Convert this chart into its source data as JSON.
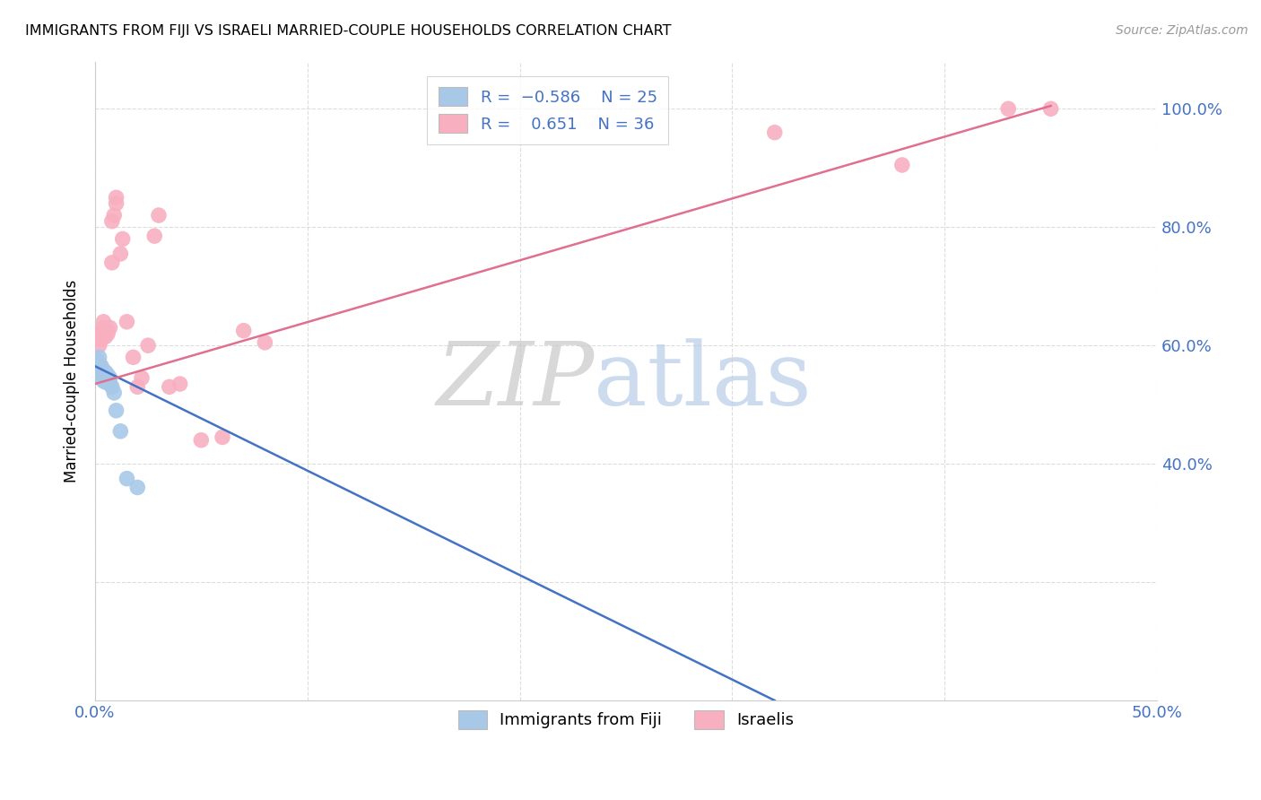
{
  "title": "IMMIGRANTS FROM FIJI VS ISRAELI MARRIED-COUPLE HOUSEHOLDS CORRELATION CHART",
  "source": "Source: ZipAtlas.com",
  "ylabel_label": "Married-couple Households",
  "x_min": 0.0,
  "x_max": 0.5,
  "y_min": 0.0,
  "y_max": 1.08,
  "fiji_R": -0.586,
  "fiji_N": 25,
  "israeli_R": 0.651,
  "israeli_N": 36,
  "fiji_color": "#a8c8e8",
  "israeli_color": "#f8b0c0",
  "fiji_line_color": "#4472c4",
  "israeli_line_color": "#e07090",
  "fiji_scatter_x": [
    0.001,
    0.001,
    0.002,
    0.002,
    0.002,
    0.003,
    0.003,
    0.003,
    0.003,
    0.004,
    0.004,
    0.004,
    0.005,
    0.005,
    0.005,
    0.006,
    0.006,
    0.007,
    0.007,
    0.008,
    0.009,
    0.01,
    0.012,
    0.015,
    0.02
  ],
  "fiji_scatter_y": [
    0.575,
    0.565,
    0.58,
    0.57,
    0.555,
    0.565,
    0.56,
    0.55,
    0.545,
    0.555,
    0.548,
    0.54,
    0.555,
    0.545,
    0.538,
    0.55,
    0.54,
    0.545,
    0.535,
    0.53,
    0.52,
    0.49,
    0.455,
    0.375,
    0.36
  ],
  "israeli_scatter_x": [
    0.001,
    0.002,
    0.002,
    0.003,
    0.003,
    0.004,
    0.004,
    0.005,
    0.005,
    0.006,
    0.006,
    0.007,
    0.008,
    0.008,
    0.009,
    0.01,
    0.01,
    0.012,
    0.013,
    0.015,
    0.018,
    0.02,
    0.022,
    0.025,
    0.028,
    0.03,
    0.035,
    0.04,
    0.05,
    0.06,
    0.07,
    0.08,
    0.32,
    0.38,
    0.43,
    0.45
  ],
  "israeli_scatter_y": [
    0.555,
    0.6,
    0.62,
    0.61,
    0.625,
    0.63,
    0.64,
    0.625,
    0.615,
    0.625,
    0.62,
    0.63,
    0.74,
    0.81,
    0.82,
    0.84,
    0.85,
    0.755,
    0.78,
    0.64,
    0.58,
    0.53,
    0.545,
    0.6,
    0.785,
    0.82,
    0.53,
    0.535,
    0.44,
    0.445,
    0.625,
    0.605,
    0.96,
    0.905,
    1.0,
    1.0
  ],
  "fiji_line_x0": 0.0,
  "fiji_line_x1": 0.32,
  "fiji_line_y0": 0.565,
  "fiji_line_y1": 0.0,
  "israeli_line_x0": 0.0,
  "israeli_line_x1": 0.45,
  "israeli_line_y0": 0.535,
  "israeli_line_y1": 1.005,
  "watermark_zip": "ZIP",
  "watermark_atlas": "atlas",
  "background_color": "#ffffff",
  "grid_color": "#dddddd"
}
